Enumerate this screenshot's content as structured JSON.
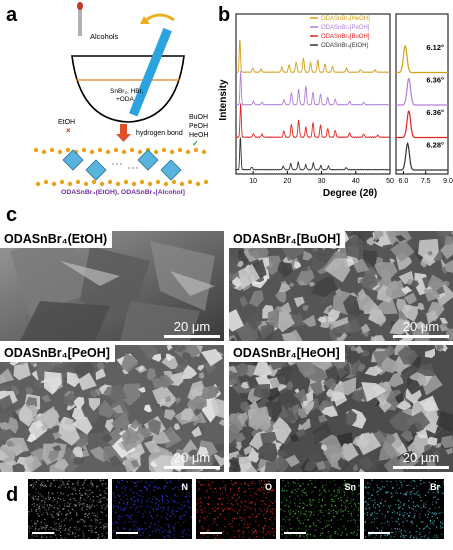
{
  "panels": {
    "a": "a",
    "b": "b",
    "c": "c",
    "d": "d"
  },
  "schematic": {
    "alcohols": "Alcohols",
    "reactants_line1": "SnBr₂, HBr,",
    "reactants_line2": "+ODA",
    "etoh": "EtOH",
    "buoh": "BuOH",
    "peoh": "PeOH",
    "heoh": "HeOH",
    "hydrogen_bond": "hydrogen bond",
    "caption": "ODASnBr₄(EtOH), ODASnBr₄[Alcohol]",
    "colors": {
      "caption": "#7030a0",
      "arrow": "#e0502a",
      "octahedra": "#58b4dd",
      "spheres": "#e8a318",
      "rod": "#2aa3e0"
    }
  },
  "chart_data": {
    "type": "line",
    "ylabel": "Intensity",
    "xlabel": "Degree (2θ)",
    "main": {
      "xlim": [
        5,
        50
      ],
      "ticks": [
        "10",
        "20",
        "30",
        "40",
        "50"
      ]
    },
    "inset": {
      "xlim": [
        5.5,
        9.0
      ],
      "ticks": [
        "6.0",
        "7.5",
        "9.0"
      ]
    },
    "series": [
      {
        "name": "ODASnBr₄[HeOH]",
        "color": "#d4a017",
        "peak": "6.12°",
        "peak_x": 6.12,
        "peaks": [
          [
            6.12,
            1.0
          ],
          [
            9.9,
            0.12
          ],
          [
            12.3,
            0.09
          ],
          [
            18.4,
            0.15
          ],
          [
            20.5,
            0.22
          ],
          [
            22.6,
            0.3
          ],
          [
            24.7,
            0.42
          ],
          [
            26.8,
            0.28
          ],
          [
            28.9,
            0.36
          ],
          [
            31.0,
            0.25
          ],
          [
            33.2,
            0.18
          ],
          [
            37.3,
            0.12
          ],
          [
            41.4,
            0.08
          ],
          [
            45.6,
            0.07
          ]
        ]
      },
      {
        "name": "ODASnBr₄[PeOH]",
        "color": "#b07fd8",
        "peak": "6.36°",
        "peak_x": 6.36,
        "peaks": [
          [
            6.36,
            1.0
          ],
          [
            10.1,
            0.1
          ],
          [
            12.6,
            0.08
          ],
          [
            19.0,
            0.14
          ],
          [
            21.2,
            0.35
          ],
          [
            23.3,
            0.45
          ],
          [
            25.4,
            0.55
          ],
          [
            27.5,
            0.38
          ],
          [
            29.7,
            0.32
          ],
          [
            31.8,
            0.22
          ],
          [
            34.0,
            0.16
          ],
          [
            38.2,
            0.1
          ],
          [
            42.3,
            0.07
          ]
        ]
      },
      {
        "name": "ODASnBr₄[BuOH]",
        "color": "#e02424",
        "peak": "6.36°",
        "peak_x": 6.36,
        "peaks": [
          [
            6.36,
            1.0
          ],
          [
            10.1,
            0.1
          ],
          [
            12.6,
            0.09
          ],
          [
            19.0,
            0.18
          ],
          [
            21.2,
            0.38
          ],
          [
            23.3,
            0.5
          ],
          [
            25.4,
            0.3
          ],
          [
            27.5,
            0.44
          ],
          [
            29.7,
            0.36
          ],
          [
            31.8,
            0.26
          ],
          [
            34.0,
            0.2
          ],
          [
            38.2,
            0.12
          ],
          [
            42.3,
            0.09
          ],
          [
            46.4,
            0.06
          ]
        ]
      },
      {
        "name": "ODASnBr₄(EtOH)",
        "color": "#333333",
        "peak": "6.28°",
        "peak_x": 6.28,
        "peaks": [
          [
            6.28,
            1.0
          ],
          [
            9.6,
            0.08
          ],
          [
            18.8,
            0.1
          ],
          [
            21.0,
            0.18
          ],
          [
            23.2,
            0.22
          ],
          [
            25.4,
            0.14
          ],
          [
            27.6,
            0.2
          ],
          [
            29.8,
            0.12
          ],
          [
            32.0,
            0.1
          ],
          [
            37.2,
            0.06
          ]
        ]
      }
    ]
  },
  "sem": [
    {
      "label": "ODASnBr₄(EtOH)",
      "scale": "20 μm"
    },
    {
      "label": "ODASnBr₄[BuOH]",
      "scale": "20 μm"
    },
    {
      "label": "ODASnBr₄[PeOH]",
      "scale": "20 μm"
    },
    {
      "label": "ODASnBr₄[HeOH]",
      "scale": "20 μm"
    }
  ],
  "edx": [
    {
      "label": "",
      "color": "#999999"
    },
    {
      "label": "N",
      "color": "#4040ff"
    },
    {
      "label": "O",
      "color": "#ff2a2a"
    },
    {
      "label": "Sn",
      "color": "#50c040"
    },
    {
      "label": "Br",
      "color": "#50c8d8"
    }
  ]
}
